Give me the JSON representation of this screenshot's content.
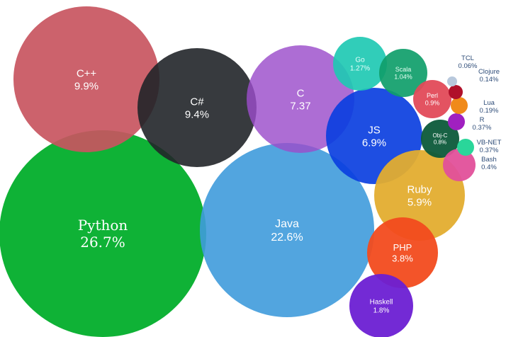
{
  "chart_data": {
    "type": "bubble",
    "title": "",
    "series": [
      {
        "name": "Python",
        "value": 26.7,
        "label": "26.7%",
        "color": "#0fb236"
      },
      {
        "name": "Java",
        "value": 22.6,
        "label": "22.6%",
        "color": "#3f9bdc"
      },
      {
        "name": "C++",
        "value": 9.9,
        "label": "9.9%",
        "color": "#c85560"
      },
      {
        "name": "C#",
        "value": 9.4,
        "label": "9.4%",
        "color": "#212529"
      },
      {
        "name": "C",
        "value": 7.37,
        "label": "7.37",
        "color": "#9b4dca"
      },
      {
        "name": "JS",
        "value": 6.9,
        "label": "6.9%",
        "color": "#0b3fe0"
      },
      {
        "name": "Ruby",
        "value": 5.9,
        "label": "5.9%",
        "color": "#e3ad2f"
      },
      {
        "name": "PHP",
        "value": 3.8,
        "label": "3.8%",
        "color": "#f24b1d"
      },
      {
        "name": "Haskell",
        "value": 1.8,
        "label": "1.8%",
        "color": "#6b1fd3"
      },
      {
        "name": "Go",
        "value": 1.27,
        "label": "1.27%",
        "color": "#20c9b3"
      },
      {
        "name": "Scala",
        "value": 1.04,
        "label": "1.04%",
        "color": "#0f9e6a"
      },
      {
        "name": "Perl",
        "value": 0.9,
        "label": "0.9%",
        "color": "#e24a58"
      },
      {
        "name": "Obj-C",
        "value": 0.8,
        "label": "0.8%",
        "color": "#0c5a3a"
      },
      {
        "name": "Bash",
        "value": 0.4,
        "label": "0.4%",
        "color": "#e2509a"
      },
      {
        "name": "VB-NET",
        "value": 0.37,
        "label": "0.37%",
        "color": "#2ad69a"
      },
      {
        "name": "R",
        "value": 0.37,
        "label": "0.37%",
        "color": "#a020c0"
      },
      {
        "name": "Lua",
        "value": 0.19,
        "label": "0.19%",
        "color": "#f08a1a"
      },
      {
        "name": "Clojure",
        "value": 0.14,
        "label": "0.14%",
        "color": "#b0102a"
      },
      {
        "name": "TCL",
        "value": 0.06,
        "label": "0.06%",
        "color": "#b8c8dc"
      }
    ]
  }
}
